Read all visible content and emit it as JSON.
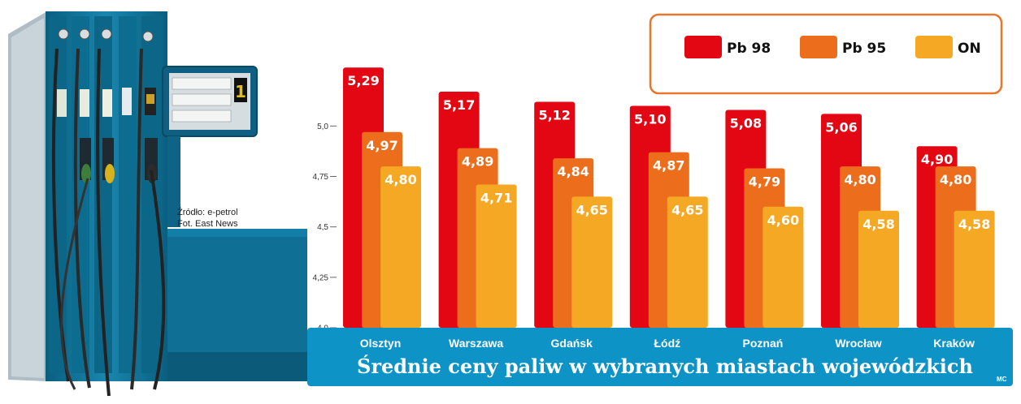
{
  "chart_data": {
    "type": "bar",
    "title": "Średnie ceny paliw w wybranych miastach wojewódzkich",
    "categories": [
      "Olsztyn",
      "Warszawa",
      "Gdańsk",
      "Łódź",
      "Poznań",
      "Wrocław",
      "Kraków"
    ],
    "series": [
      {
        "name": "Pb 98",
        "color": "#e30613",
        "values": [
          5.29,
          5.17,
          5.12,
          5.1,
          5.08,
          5.06,
          4.9
        ],
        "labels": [
          "5,29",
          "5,17",
          "5,12",
          "5,10",
          "5,08",
          "5,06",
          "4,90"
        ]
      },
      {
        "name": "Pb 95",
        "color": "#ec6e1c",
        "values": [
          4.97,
          4.89,
          4.84,
          4.87,
          4.79,
          4.8,
          4.8
        ],
        "labels": [
          "4,97",
          "4,89",
          "4,84",
          "4,87",
          "4,79",
          "4,80",
          "4,80"
        ]
      },
      {
        "name": "ON",
        "color": "#f5a823",
        "values": [
          4.8,
          4.71,
          4.65,
          4.65,
          4.6,
          4.58,
          4.58
        ],
        "labels": [
          "4,80",
          "4,71",
          "4,65",
          "4,65",
          "4,60",
          "4,58",
          "4,58"
        ]
      }
    ],
    "ylim": [
      4.0,
      5.5
    ],
    "yticks": [
      4.0,
      4.25,
      4.5,
      4.75,
      5.0
    ],
    "ytick_labels": [
      "4,0",
      "4,25",
      "4,5",
      "4,75",
      "5,0"
    ],
    "xlabel": "",
    "ylabel": "",
    "legend_position": "top-right",
    "grid": false
  },
  "source": {
    "line1": "Źródło: e-petrol",
    "line2": "Fot. East News"
  },
  "credit": "MC",
  "pump": {
    "display_number": "1"
  },
  "colors": {
    "banner": "#0e93c6",
    "legend_border": "#e8762d",
    "pump_body": "#0f6f94"
  }
}
